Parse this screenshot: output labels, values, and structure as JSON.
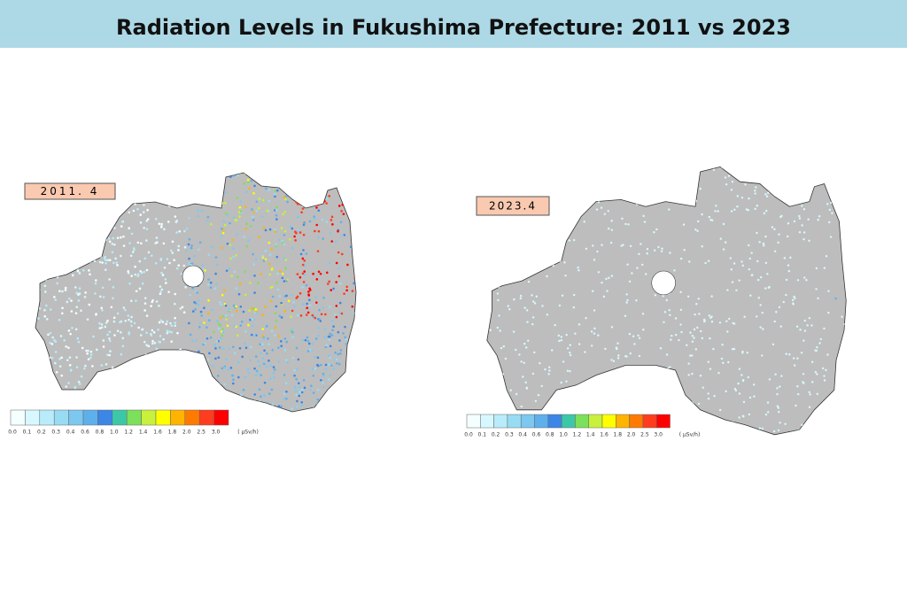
{
  "header": {
    "title": "Radiation Levels in Fukushima Prefecture: 2011 vs 2023"
  },
  "panels": [
    {
      "label": "2011. 4"
    },
    {
      "label": "2023.4"
    }
  ],
  "legend": {
    "labels": [
      "0.0",
      "0.1",
      "0.2",
      "0.3",
      "0.4",
      "0.6",
      "0.8",
      "1.0",
      "1.2",
      "1.4",
      "1.6",
      "1.8",
      "2.0",
      "2.5",
      "3.0"
    ],
    "colors": [
      "#f4ffff",
      "#d8f8ff",
      "#b8ecfa",
      "#98dcf4",
      "#7cc8f0",
      "#5eb0ec",
      "#3c86e6",
      "#3cc8a8",
      "#7ce05a",
      "#c8f03c",
      "#ffff00",
      "#ffb400",
      "#ff7a00",
      "#ff3c1e",
      "#ff0000"
    ],
    "unit": "( μSv/h)"
  }
}
